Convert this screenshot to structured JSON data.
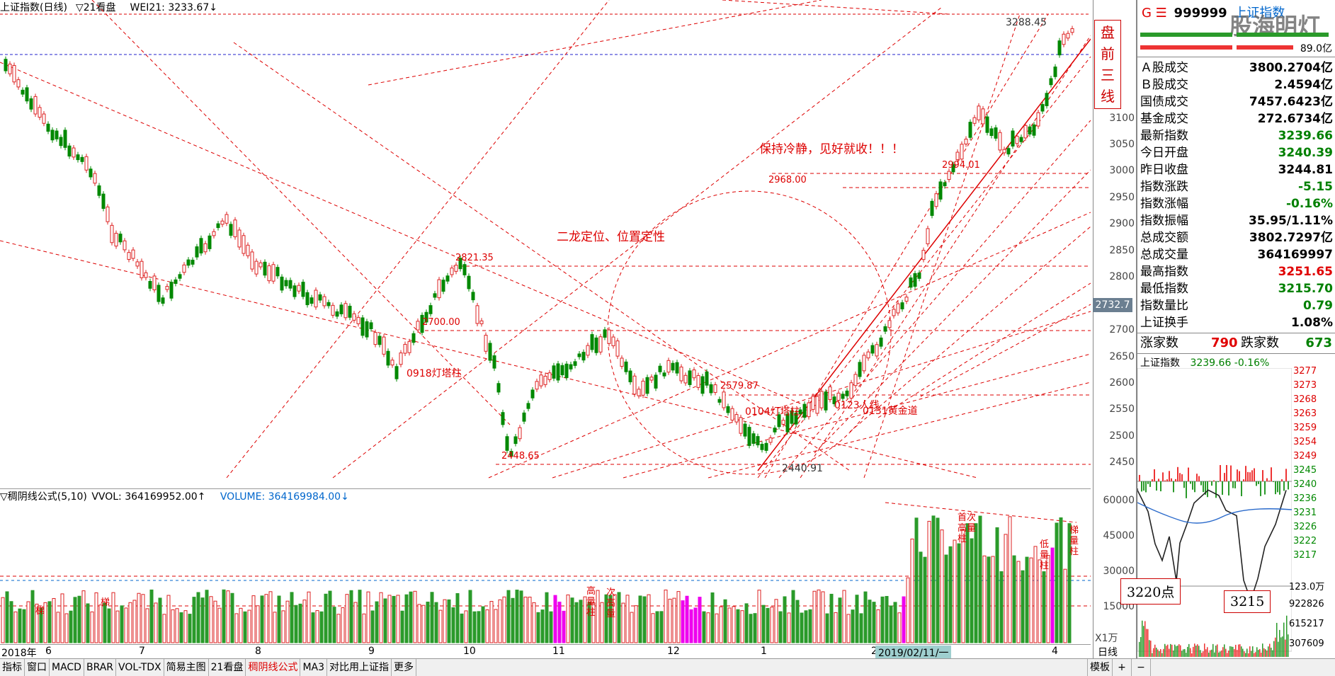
{
  "header": {
    "title": "上证指数(日线)",
    "mode": "▽21看盘",
    "indicator": "WEI21: 3233.67↓"
  },
  "side_title": {
    "chars": [
      "盘",
      "前",
      "三",
      "线"
    ]
  },
  "main_annotations": {
    "a1": "保持冷静，见好就收！！！",
    "a2": "二龙定位、位置定性",
    "p3288": "3288.45",
    "p2994": "2994.01",
    "p2968": "2968.00",
    "p2821": "2821.35",
    "p2700": "2700.00",
    "p2579": "2579.87",
    "p2448": "2448.65",
    "p2440": "2440.91",
    "l0918": "0918灯塔柱",
    "l0104": "0104灯塔柱",
    "l0123": "0123人线",
    "l0131": "0131黄金道"
  },
  "price_axis": {
    "ticks": [
      "3100",
      "3050",
      "3000",
      "2950",
      "2900",
      "2850",
      "2800",
      "2700",
      "2650",
      "2600",
      "2550",
      "2500",
      "2450"
    ],
    "current": "2732.7"
  },
  "volume_header": {
    "title": "▽稠阴线公式(5,10)",
    "vvol": "VVOL: 364169952.00↑",
    "volume": "VOLUME: 364169984.00↓"
  },
  "volume_axis": {
    "ticks": [
      "60000",
      "45000",
      "30000",
      "15000"
    ],
    "unit": "X1万"
  },
  "volume_annotations": {
    "v1": "梯",
    "v2": "梯",
    "v3": "高量柱",
    "v4": "次高量",
    "v5": "首次高量柱",
    "v6": "低量柱",
    "v7": "梯量柱"
  },
  "x_axis": {
    "labels": [
      "2018年",
      "6",
      "7",
      "8",
      "9",
      "10",
      "11",
      "12",
      "1",
      "2",
      "3",
      "4"
    ],
    "date_flag": "2019/02/11/一",
    "right": "日线"
  },
  "tabs": [
    {
      "label": "指标",
      "active": false
    },
    {
      "label": "窗口",
      "active": false
    },
    {
      "label": "MACD",
      "active": false
    },
    {
      "label": "BRAR",
      "active": false
    },
    {
      "label": "VOL-TDX",
      "active": false
    },
    {
      "label": "简易主图",
      "active": false
    },
    {
      "label": "21看盘",
      "active": false
    },
    {
      "label": "稠阴线公式",
      "active": true
    },
    {
      "label": "MA3",
      "active": false
    },
    {
      "label": "对比用上证指",
      "active": false
    },
    {
      "label": "更多",
      "active": false
    }
  ],
  "tabs_right": {
    "mode": "模板",
    "plus": "+",
    "minus": "−"
  },
  "panel": {
    "code_prefix": "G ☰",
    "code": "999999",
    "name": "上证指数",
    "watermark": "股海明灯",
    "small1": "89.0亿",
    "rows": [
      {
        "k": "Ａ股成交",
        "v": "3800.2704亿",
        "c": ""
      },
      {
        "k": "Ｂ股成交",
        "v": "2.4594亿",
        "c": ""
      },
      {
        "k": "国债成交",
        "v": "7457.6423亿",
        "c": ""
      },
      {
        "k": "基金成交",
        "v": "272.6734亿",
        "c": ""
      },
      {
        "k": "最新指数",
        "v": "3239.66",
        "c": "green"
      },
      {
        "k": "今日开盘",
        "v": "3240.39",
        "c": "green"
      },
      {
        "k": "昨日收盘",
        "v": "3244.81",
        "c": ""
      },
      {
        "k": "指数涨跌",
        "v": "-5.15",
        "c": "green"
      },
      {
        "k": "指数涨幅",
        "v": "-0.16%",
        "c": "green"
      },
      {
        "k": "指数振幅",
        "v": "35.95/1.11%",
        "c": ""
      },
      {
        "k": "总成交额",
        "v": "3802.7297亿",
        "c": ""
      },
      {
        "k": "总成交量",
        "v": "364169997",
        "c": ""
      },
      {
        "k": "最高指数",
        "v": "3251.65",
        "c": "red"
      },
      {
        "k": "最低指数",
        "v": "3215.70",
        "c": "green"
      },
      {
        "k": "指数量比",
        "v": "0.79",
        "c": "green"
      },
      {
        "k": "上证换手",
        "v": "1.08%",
        "c": ""
      }
    ],
    "rise_label": "涨家数",
    "rise": "790",
    "fall_label": "跌家数",
    "fall": "673",
    "intraday_title": "上证指数",
    "intraday_value": "3239.66 -0.16%",
    "intraday_ticks": [
      "3277",
      "3273",
      "3268",
      "3263",
      "3259",
      "3254",
      "3249",
      "3245",
      "3240",
      "3236",
      "3231",
      "3226",
      "3222",
      "3217"
    ],
    "vol_ticks": [
      "123.0万",
      "922826",
      "615217",
      "307609"
    ],
    "callout1": "3220点",
    "callout2": "3215"
  }
}
